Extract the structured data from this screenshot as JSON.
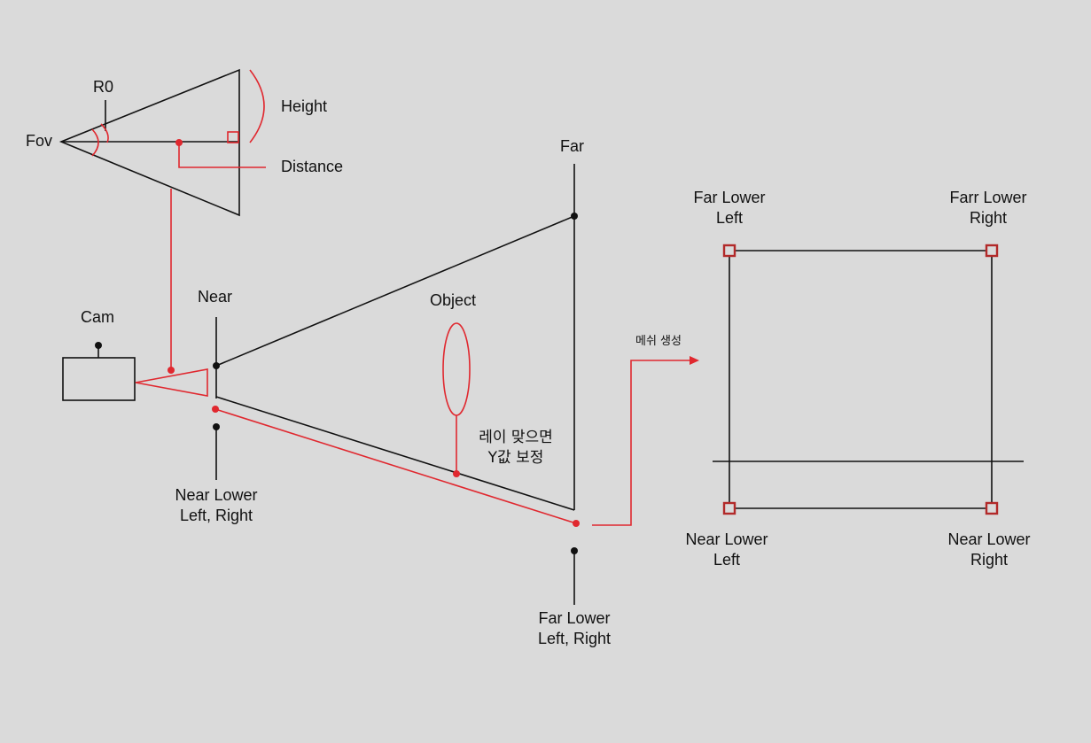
{
  "colors": {
    "background": "#dadada",
    "line": "#111111",
    "accent": "#e0282f",
    "corner_marker": "#b22a2a"
  },
  "labels": {
    "fov": "Fov",
    "r0": "R0",
    "height": "Height",
    "distance": "Distance",
    "far": "Far",
    "cam": "Cam",
    "near": "Near",
    "object": "Object",
    "ray_note_line1": "레이 맞으면",
    "ray_note_line2": "Y값 보정",
    "near_lower_lr_line1": "Near Lower",
    "near_lower_lr_line2": "Left, Right",
    "far_lower_lr_line1": "Far Lower",
    "far_lower_lr_line2": "Left, Right",
    "mesh_create": "메쉬 생성"
  },
  "mesh_rect": {
    "far_lower_left_line1": "Far Lower",
    "far_lower_left_line2": "Left",
    "far_lower_right_line1": "Farr Lower",
    "far_lower_right_line2": "Right",
    "near_lower_left_line1": "Near Lower",
    "near_lower_left_line2": "Left",
    "near_lower_right_line1": "Near Lower",
    "near_lower_right_line2": "Right"
  }
}
